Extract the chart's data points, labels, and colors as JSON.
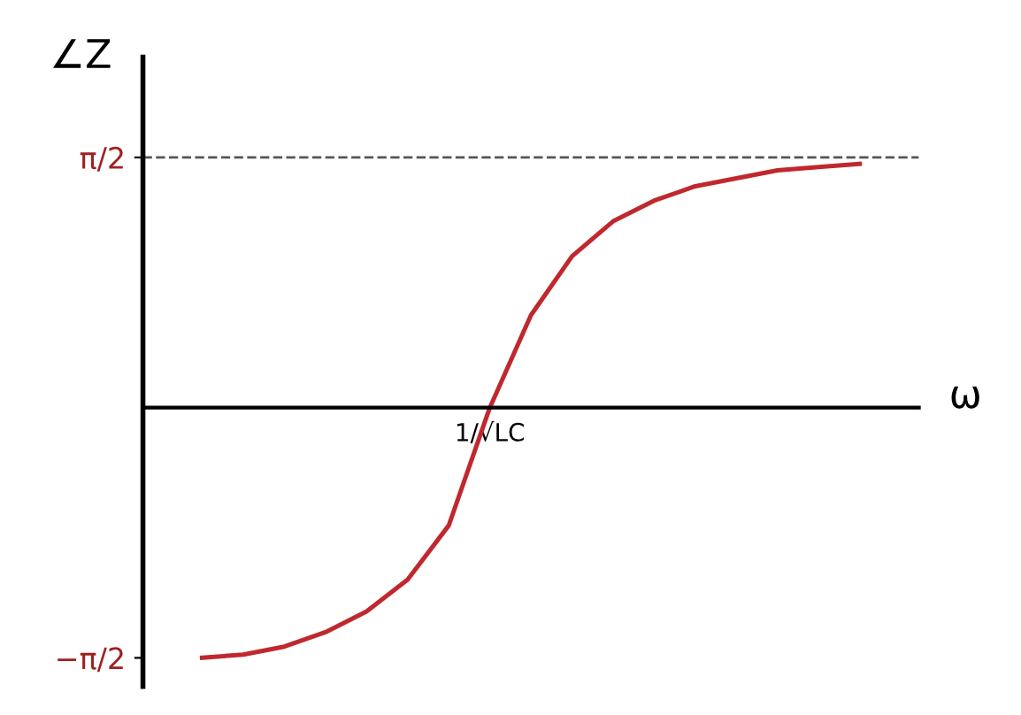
{
  "chart_data": {
    "type": "line",
    "xlabel": "ω",
    "ylabel": "∠Z",
    "categories": [
      null,
      null,
      null,
      null,
      null,
      null,
      null,
      "1/√LC",
      null,
      null,
      null,
      null,
      null,
      null,
      null,
      null,
      null
    ],
    "series": [
      {
        "color": "#c0282e",
        "values": [
          -1.57,
          -1.55,
          -1.5,
          -1.41,
          -1.28,
          -1.08,
          -0.74,
          0.0,
          0.58,
          0.95,
          1.17,
          1.3,
          1.39,
          1.44,
          1.49,
          1.51,
          1.53
        ]
      }
    ],
    "ylim": [
      -1.75,
      2.2
    ],
    "yticks": [
      {
        "value": -1.5708,
        "label": "−π/2"
      },
      {
        "value": 1.5708,
        "label": "π/2"
      }
    ],
    "ref_lines": [
      {
        "axis": "y",
        "value": 1.5708,
        "label": null,
        "color": "#555555",
        "line_style": "dashed"
      }
    ],
    "grid": false,
    "legend": false,
    "marker": "none",
    "line_style": "solid"
  }
}
